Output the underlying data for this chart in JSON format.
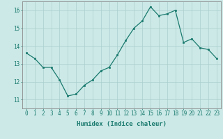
{
  "x": [
    0,
    1,
    2,
    3,
    4,
    5,
    6,
    7,
    8,
    9,
    10,
    11,
    12,
    13,
    14,
    15,
    16,
    17,
    18,
    19,
    20,
    21,
    22,
    23
  ],
  "y": [
    13.6,
    13.3,
    12.8,
    12.8,
    12.1,
    11.2,
    11.3,
    11.8,
    12.1,
    12.6,
    12.8,
    13.5,
    14.3,
    15.0,
    15.4,
    16.2,
    15.7,
    15.8,
    16.0,
    14.2,
    14.4,
    13.9,
    13.8,
    13.3
  ],
  "xlim": [
    -0.5,
    23.5
  ],
  "ylim": [
    10.5,
    16.5
  ],
  "yticks": [
    11,
    12,
    13,
    14,
    15,
    16
  ],
  "xticks": [
    0,
    1,
    2,
    3,
    4,
    5,
    6,
    7,
    8,
    9,
    10,
    11,
    12,
    13,
    14,
    15,
    16,
    17,
    18,
    19,
    20,
    21,
    22,
    23
  ],
  "xlabel": "Humidex (Indice chaleur)",
  "line_color": "#1a7a6e",
  "marker_color": "#1a7a6e",
  "bg_color": "#cce9e7",
  "grid_color": "#aacfcc",
  "axis_color": "#888888",
  "xlabel_color": "#1a7a6e",
  "tick_label_color": "#1a7a6e",
  "xlabel_fontsize": 6.5,
  "tick_fontsize": 5.5,
  "ytick_fontsize": 5.5
}
